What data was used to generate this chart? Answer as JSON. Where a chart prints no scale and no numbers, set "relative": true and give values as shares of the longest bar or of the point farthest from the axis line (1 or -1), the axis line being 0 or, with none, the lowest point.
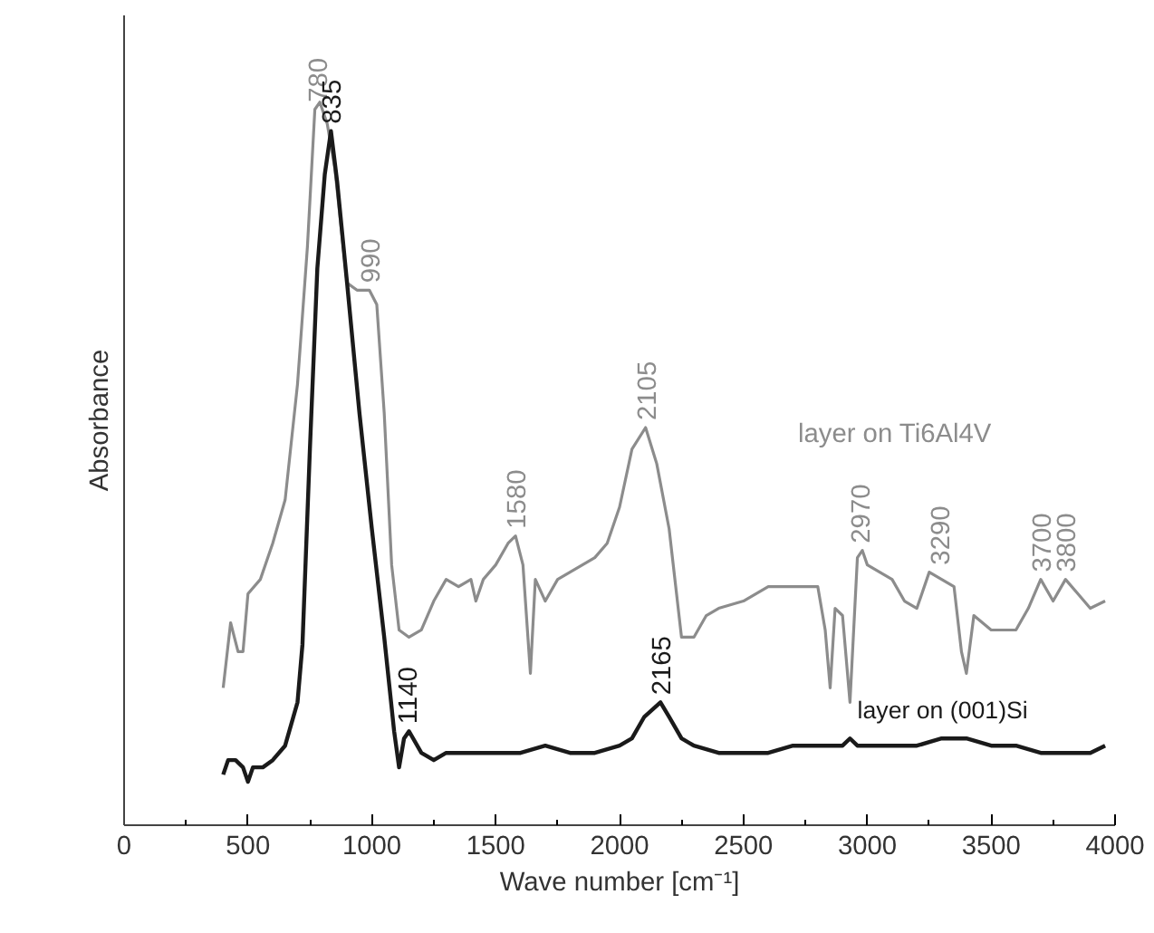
{
  "chart_data": {
    "type": "line",
    "xlabel": "Wave number [cm⁻¹]",
    "ylabel": "Absorbance",
    "relative": true,
    "xlim": [
      0,
      4000
    ],
    "xticks": [
      0,
      500,
      1000,
      1500,
      2000,
      2500,
      3000,
      3500,
      4000
    ],
    "tick_labels": "x",
    "grid": false,
    "series": [
      {
        "name": "layer on Ti6Al4V",
        "color": "#8c8c8c",
        "x": [
          400,
          430,
          460,
          480,
          500,
          550,
          600,
          650,
          700,
          740,
          770,
          790,
          820,
          850,
          900,
          940,
          990,
          1020,
          1050,
          1080,
          1110,
          1150,
          1200,
          1250,
          1300,
          1350,
          1400,
          1420,
          1450,
          1500,
          1550,
          1580,
          1610,
          1640,
          1660,
          1700,
          1750,
          1800,
          1850,
          1900,
          1950,
          2000,
          2050,
          2105,
          2150,
          2200,
          2250,
          2300,
          2350,
          2400,
          2500,
          2600,
          2700,
          2800,
          2830,
          2850,
          2870,
          2900,
          2930,
          2960,
          2980,
          3000,
          3100,
          3150,
          3200,
          3250,
          3300,
          3350,
          3380,
          3400,
          3430,
          3500,
          3550,
          3600,
          3650,
          3700,
          3750,
          3800,
          3850,
          3900,
          3960
        ],
        "values": [
          0.19,
          0.28,
          0.24,
          0.24,
          0.32,
          0.34,
          0.39,
          0.45,
          0.61,
          0.8,
          0.99,
          1.0,
          0.97,
          0.91,
          0.75,
          0.74,
          0.74,
          0.72,
          0.57,
          0.36,
          0.27,
          0.26,
          0.27,
          0.31,
          0.34,
          0.33,
          0.34,
          0.31,
          0.34,
          0.36,
          0.39,
          0.4,
          0.36,
          0.21,
          0.34,
          0.31,
          0.34,
          0.35,
          0.36,
          0.37,
          0.39,
          0.44,
          0.52,
          0.55,
          0.5,
          0.41,
          0.26,
          0.26,
          0.29,
          0.3,
          0.31,
          0.33,
          0.33,
          0.33,
          0.27,
          0.19,
          0.3,
          0.29,
          0.17,
          0.37,
          0.38,
          0.36,
          0.34,
          0.31,
          0.3,
          0.35,
          0.34,
          0.33,
          0.24,
          0.21,
          0.29,
          0.27,
          0.27,
          0.27,
          0.3,
          0.34,
          0.31,
          0.34,
          0.32,
          0.3,
          0.31
        ]
      },
      {
        "name": "layer on (001)Si",
        "color": "#1a1a1a",
        "x": [
          400,
          420,
          450,
          480,
          500,
          520,
          560,
          600,
          650,
          700,
          720,
          750,
          780,
          810,
          835,
          860,
          900,
          950,
          1000,
          1050,
          1090,
          1110,
          1130,
          1150,
          1200,
          1250,
          1300,
          1400,
          1500,
          1600,
          1700,
          1800,
          1900,
          2000,
          2050,
          2100,
          2165,
          2200,
          2250,
          2300,
          2400,
          2500,
          2600,
          2700,
          2800,
          2900,
          2930,
          2960,
          3000,
          3100,
          3200,
          3300,
          3400,
          3500,
          3600,
          3700,
          3800,
          3900,
          3960
        ],
        "values": [
          0.07,
          0.09,
          0.09,
          0.08,
          0.06,
          0.08,
          0.08,
          0.09,
          0.11,
          0.17,
          0.25,
          0.52,
          0.77,
          0.9,
          0.96,
          0.89,
          0.75,
          0.57,
          0.41,
          0.26,
          0.13,
          0.08,
          0.12,
          0.13,
          0.1,
          0.09,
          0.1,
          0.1,
          0.1,
          0.1,
          0.11,
          0.1,
          0.1,
          0.11,
          0.12,
          0.15,
          0.17,
          0.15,
          0.12,
          0.11,
          0.1,
          0.1,
          0.1,
          0.11,
          0.11,
          0.11,
          0.12,
          0.11,
          0.11,
          0.11,
          0.11,
          0.12,
          0.12,
          0.11,
          0.11,
          0.1,
          0.1,
          0.1,
          0.11
        ]
      }
    ],
    "annotations": [
      {
        "text": "780",
        "x": 780,
        "y": 0.99
      },
      {
        "text": "835",
        "x": 835,
        "y": 0.96
      },
      {
        "text": "990",
        "x": 990,
        "y": 0.74
      },
      {
        "text": "1140",
        "x": 1140,
        "y": 0.13
      },
      {
        "text": "1580",
        "x": 1580,
        "y": 0.4
      },
      {
        "text": "2105",
        "x": 2105,
        "y": 0.55
      },
      {
        "text": "2165",
        "x": 2165,
        "y": 0.17
      },
      {
        "text": "2970",
        "x": 2970,
        "y": 0.38
      },
      {
        "text": "3290",
        "x": 3290,
        "y": 0.35
      },
      {
        "text": "3700",
        "x": 3700,
        "y": 0.34
      },
      {
        "text": "3800",
        "x": 3800,
        "y": 0.34
      }
    ]
  }
}
